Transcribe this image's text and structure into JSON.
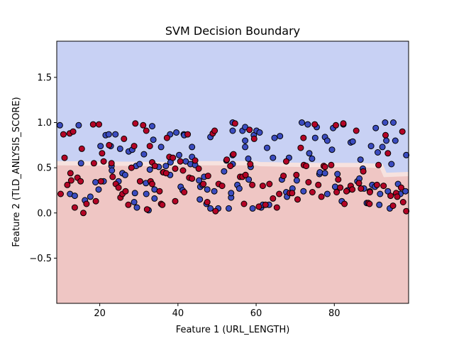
{
  "chart_data": {
    "type": "scatter",
    "title": "SVM Decision Boundary",
    "xlabel": "Feature 1 (URL_LENGTH)",
    "ylabel": "Feature 2 (TLD_ANLYSIS_SCORE)",
    "xlim": [
      9,
      99
    ],
    "ylim": [
      -1.0,
      1.9
    ],
    "x_ticks": [
      20,
      40,
      60,
      80
    ],
    "y_ticks": [
      -0.5,
      0.0,
      0.5,
      1.0,
      1.5
    ],
    "grid": false,
    "legend": "none",
    "decision_regions": {
      "upper_color": "#c8d1f4",
      "lower_color": "#efc6c4",
      "boundary_color": "#f7e2df",
      "boundary": [
        [
          9,
          0.55
        ],
        [
          39,
          0.54
        ],
        [
          40,
          0.55
        ],
        [
          60,
          0.55
        ],
        [
          61,
          0.54
        ],
        [
          73,
          0.53
        ],
        [
          86,
          0.53
        ],
        [
          92,
          0.52
        ],
        [
          93,
          0.42
        ],
        [
          99,
          0.43
        ]
      ]
    },
    "series": [
      {
        "color": "#3b4cc0",
        "points": [
          [
            9.8,
            0.97
          ],
          [
            12.4,
            0.21
          ],
          [
            13.6,
            0.19
          ],
          [
            14.6,
            0.97
          ],
          [
            15.2,
            0.55
          ],
          [
            16.2,
            0.14
          ],
          [
            17.6,
            0.18
          ],
          [
            18.9,
            0.34
          ],
          [
            19.7,
            0.26
          ],
          [
            20.2,
            0.74
          ],
          [
            21.0,
            0.35
          ],
          [
            21.5,
            0.86
          ],
          [
            22.3,
            0.87
          ],
          [
            22.8,
            0.74
          ],
          [
            23.0,
            0.52
          ],
          [
            23.1,
            0.47
          ],
          [
            24.0,
            0.87
          ],
          [
            24.8,
            0.35
          ],
          [
            25.2,
            0.71
          ],
          [
            25.8,
            0.44
          ],
          [
            26.5,
            0.42
          ],
          [
            27.4,
            0.68
          ],
          [
            28.3,
            0.7
          ],
          [
            28.8,
            0.12
          ],
          [
            29.3,
            0.52
          ],
          [
            29.0,
            0.22
          ],
          [
            29.5,
            0.06
          ],
          [
            30.2,
            0.54
          ],
          [
            31.3,
            0.65
          ],
          [
            31.8,
            0.33
          ],
          [
            31.9,
            0.21
          ],
          [
            32.5,
            0.03
          ],
          [
            32.8,
            0.48
          ],
          [
            33.4,
            0.96
          ],
          [
            33.7,
            0.81
          ],
          [
            34.0,
            0.26
          ],
          [
            34.0,
            0.16
          ],
          [
            35.1,
            0.51
          ],
          [
            35.7,
            0.73
          ],
          [
            36.2,
            0.45
          ],
          [
            36.9,
            0.52
          ],
          [
            38.0,
            0.87
          ],
          [
            38.1,
            0.56
          ],
          [
            38.0,
            0.42
          ],
          [
            39.6,
            0.89
          ],
          [
            40.3,
            0.64
          ],
          [
            40.7,
            0.29
          ],
          [
            41.2,
            0.25
          ],
          [
            41.5,
            0.87
          ],
          [
            41.6,
            0.86
          ],
          [
            42.0,
            0.57
          ],
          [
            43.2,
            0.54
          ],
          [
            43.6,
            0.62
          ],
          [
            43.6,
            0.73
          ],
          [
            44.4,
            0.53
          ],
          [
            45.6,
            0.15
          ],
          [
            45.7,
            0.29
          ],
          [
            45.4,
            0.36
          ],
          [
            46.3,
            0.31
          ],
          [
            46.7,
            0.4
          ],
          [
            47.3,
            0.1
          ],
          [
            47.5,
            0.26
          ],
          [
            48.3,
            0.84
          ],
          [
            48.3,
            0.05
          ],
          [
            49.3,
            0.24
          ],
          [
            50.3,
            0.05
          ],
          [
            51.8,
            0.46
          ],
          [
            52.4,
            0.58
          ],
          [
            53.0,
            0.05
          ],
          [
            53.6,
            0.17
          ],
          [
            53.6,
            0.22
          ],
          [
            54.0,
            1.0
          ],
          [
            54.0,
            0.91
          ],
          [
            54.0,
            0.64
          ],
          [
            54.0,
            0.54
          ],
          [
            55.2,
            0.31
          ],
          [
            55.7,
            0.27
          ],
          [
            56.5,
            0.91
          ],
          [
            57.2,
            0.95
          ],
          [
            57.2,
            0.8
          ],
          [
            57.2,
            0.73
          ],
          [
            58.0,
            0.6
          ],
          [
            58.1,
            0.37
          ],
          [
            58.6,
            0.51
          ],
          [
            59.1,
            0.05
          ],
          [
            59.4,
            0.86
          ],
          [
            60.1,
            0.91
          ],
          [
            60.9,
            0.89
          ],
          [
            61.3,
            0.06
          ],
          [
            61.7,
            0.09
          ],
          [
            62.8,
            0.72
          ],
          [
            63.3,
            0.09
          ],
          [
            64.3,
            0.61
          ],
          [
            64.7,
            0.83
          ],
          [
            66.1,
            0.85
          ],
          [
            66.6,
            0.37
          ],
          [
            67.7,
            0.23
          ],
          [
            67.9,
            0.18
          ],
          [
            68.4,
            0.61
          ],
          [
            69.3,
            0.27
          ],
          [
            70.4,
            0.36
          ],
          [
            71.7,
            1.0
          ],
          [
            72.1,
            0.24
          ],
          [
            73.2,
            0.98
          ],
          [
            73.6,
            0.66
          ],
          [
            74.3,
            0.6
          ],
          [
            75.1,
            0.83
          ],
          [
            75.5,
            0.95
          ],
          [
            76.2,
            0.43
          ],
          [
            76.3,
            0.45
          ],
          [
            77.6,
            0.44
          ],
          [
            77.6,
            0.84
          ],
          [
            78.2,
            0.8
          ],
          [
            78.2,
            0.21
          ],
          [
            79.4,
            0.7
          ],
          [
            79.7,
            0.94
          ],
          [
            80.2,
            0.29
          ],
          [
            80.8,
            0.43
          ],
          [
            81.9,
            0.13
          ],
          [
            82.3,
            0.98
          ],
          [
            83.4,
            0.25
          ],
          [
            84.2,
            0.78
          ],
          [
            84.7,
            0.79
          ],
          [
            85.9,
            0.35
          ],
          [
            86.4,
            0.38
          ],
          [
            86.7,
            0.59
          ],
          [
            87.3,
            0.49
          ],
          [
            87.6,
            0.27
          ],
          [
            88.3,
            0.11
          ],
          [
            89.1,
            0.24
          ],
          [
            89.4,
            0.74
          ],
          [
            89.7,
            0.31
          ],
          [
            90.4,
            0.29
          ],
          [
            90.6,
            0.94
          ],
          [
            91.1,
            0.67
          ],
          [
            91.5,
            0.09
          ],
          [
            91.7,
            0.21
          ],
          [
            92.3,
            0.73
          ],
          [
            93.0,
            1.0
          ],
          [
            93.3,
            0.8
          ],
          [
            93.7,
            0.24
          ],
          [
            94.2,
            0.05
          ],
          [
            94.6,
            0.54
          ],
          [
            95.1,
            1.0
          ],
          [
            95.6,
            0.8
          ],
          [
            96.3,
            0.32
          ],
          [
            96.9,
            0.21
          ],
          [
            98.2,
            0.24
          ],
          [
            98.4,
            0.64
          ]
        ]
      },
      {
        "color": "#b40426",
        "points": [
          [
            10.0,
            0.21
          ],
          [
            10.7,
            0.87
          ],
          [
            11.0,
            0.61
          ],
          [
            11.7,
            0.31
          ],
          [
            12.3,
            0.88
          ],
          [
            12.5,
            0.44
          ],
          [
            12.7,
            0.36
          ],
          [
            13.2,
            0.9
          ],
          [
            13.6,
            0.06
          ],
          [
            14.3,
            0.39
          ],
          [
            15.1,
            0.35
          ],
          [
            15.4,
            0.71
          ],
          [
            15.8,
            0.0
          ],
          [
            16.6,
            0.1
          ],
          [
            18.3,
            0.98
          ],
          [
            18.5,
            0.55
          ],
          [
            19.0,
            0.13
          ],
          [
            19.8,
            0.98
          ],
          [
            20.3,
            0.35
          ],
          [
            20.6,
            0.66
          ],
          [
            21.0,
            0.57
          ],
          [
            22.4,
            0.75
          ],
          [
            23.0,
            0.55
          ],
          [
            23.3,
            0.4
          ],
          [
            24.1,
            0.32
          ],
          [
            24.8,
            0.28
          ],
          [
            25.3,
            0.17
          ],
          [
            25.8,
            0.21
          ],
          [
            26.2,
            0.82
          ],
          [
            26.6,
            0.24
          ],
          [
            27.3,
            0.09
          ],
          [
            28.1,
            0.5
          ],
          [
            28.8,
            0.74
          ],
          [
            29.1,
            0.99
          ],
          [
            30.3,
            0.35
          ],
          [
            31.1,
            0.97
          ],
          [
            31.9,
            0.91
          ],
          [
            32.1,
            0.04
          ],
          [
            32.8,
            0.74
          ],
          [
            33.0,
            0.35
          ],
          [
            33.4,
            0.32
          ],
          [
            33.4,
            0.56
          ],
          [
            34.1,
            0.52
          ],
          [
            35.3,
            0.24
          ],
          [
            35.7,
            0.1
          ],
          [
            36.0,
            0.09
          ],
          [
            36.3,
            0.45
          ],
          [
            37.0,
            0.44
          ],
          [
            37.2,
            0.83
          ],
          [
            37.8,
            0.62
          ],
          [
            38.7,
            0.61
          ],
          [
            39.3,
            0.13
          ],
          [
            39.3,
            0.49
          ],
          [
            40.6,
            0.57
          ],
          [
            41.3,
            0.47
          ],
          [
            41.6,
            0.23
          ],
          [
            42.5,
            0.87
          ],
          [
            42.9,
            0.39
          ],
          [
            43.6,
            0.38
          ],
          [
            44.4,
            0.58
          ],
          [
            45.3,
            0.49
          ],
          [
            46.5,
            0.32
          ],
          [
            47.5,
            0.12
          ],
          [
            47.7,
            0.41
          ],
          [
            48.9,
            0.88
          ],
          [
            49.4,
            0.91
          ],
          [
            49.6,
            0.02
          ],
          [
            50.4,
            0.32
          ],
          [
            51.3,
            0.3
          ],
          [
            52.5,
            0.59
          ],
          [
            53.4,
            0.52
          ],
          [
            54.2,
            0.65
          ],
          [
            54.6,
            0.99
          ],
          [
            55.9,
            0.4
          ],
          [
            56.5,
            0.4
          ],
          [
            56.9,
            0.1
          ],
          [
            57.3,
            0.42
          ],
          [
            58.3,
            0.92
          ],
          [
            58.5,
            0.54
          ],
          [
            59.0,
            0.31
          ],
          [
            59.5,
            0.82
          ],
          [
            60.7,
            0.07
          ],
          [
            61.7,
            0.3
          ],
          [
            62.4,
            0.09
          ],
          [
            63.4,
            0.32
          ],
          [
            64.3,
            0.16
          ],
          [
            65.3,
            0.06
          ],
          [
            65.9,
            0.21
          ],
          [
            67.0,
            0.41
          ],
          [
            67.7,
            0.57
          ],
          [
            68.6,
            0.22
          ],
          [
            69.2,
            0.22
          ],
          [
            70.3,
            0.42
          ],
          [
            70.6,
            0.15
          ],
          [
            71.4,
            0.72
          ],
          [
            72.1,
            0.83
          ],
          [
            72.2,
            0.53
          ],
          [
            72.8,
            0.52
          ],
          [
            73.4,
            0.34
          ],
          [
            74.4,
            0.23
          ],
          [
            75.0,
            0.98
          ],
          [
            75.9,
            0.31
          ],
          [
            76.7,
            0.18
          ],
          [
            77.3,
            0.52
          ],
          [
            77.6,
            0.51
          ],
          [
            79.2,
            0.53
          ],
          [
            80.4,
            0.97
          ],
          [
            80.6,
            0.23
          ],
          [
            81.0,
            0.37
          ],
          [
            81.5,
            0.28
          ],
          [
            82.3,
            0.99
          ],
          [
            82.6,
            0.1
          ],
          [
            83.1,
            0.24
          ],
          [
            84.2,
            0.3
          ],
          [
            84.6,
            0.26
          ],
          [
            85.6,
            0.91
          ],
          [
            86.3,
            0.33
          ],
          [
            86.8,
            0.27
          ],
          [
            87.4,
            0.46
          ],
          [
            88.7,
            0.11
          ],
          [
            89.0,
            0.1
          ],
          [
            89.1,
            0.23
          ],
          [
            90.9,
            0.31
          ],
          [
            91.3,
            0.53
          ],
          [
            92.6,
            0.3
          ],
          [
            93.1,
            0.86
          ],
          [
            93.7,
            0.66
          ],
          [
            94.4,
            0.19
          ],
          [
            95.0,
            0.08
          ],
          [
            95.8,
            0.22
          ],
          [
            96.1,
            0.18
          ],
          [
            97.1,
            0.28
          ],
          [
            97.4,
            0.9
          ],
          [
            97.6,
            0.12
          ],
          [
            98.4,
            0.02
          ]
        ]
      }
    ]
  }
}
